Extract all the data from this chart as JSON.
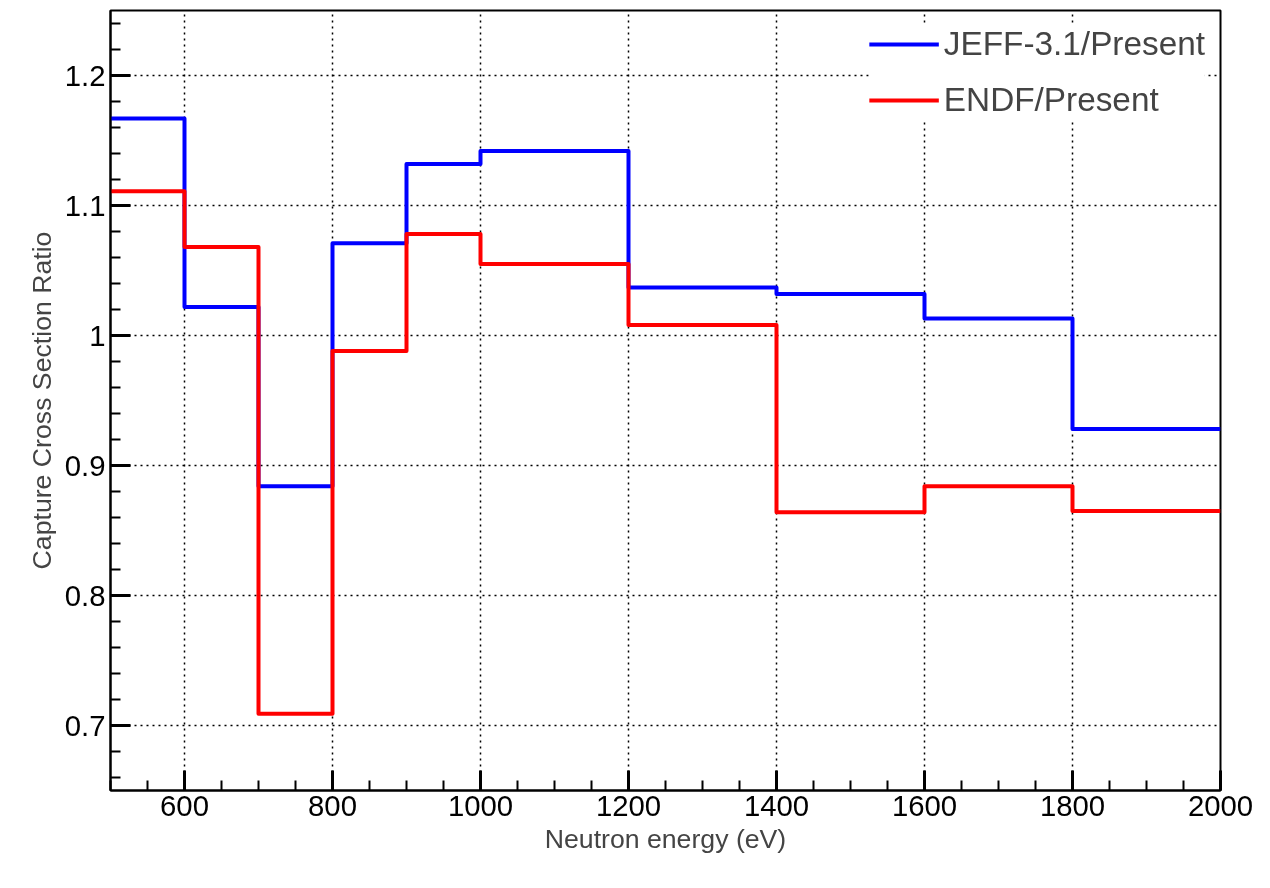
{
  "chart_data": {
    "type": "step",
    "xlabel": "Neutron energy (eV)",
    "ylabel": "Capture Cross Section Ratio",
    "x": [
      500,
      600,
      700,
      800,
      900,
      1000,
      1200,
      1400,
      1600,
      1800,
      2000
    ],
    "series": [
      {
        "name": "JEFF-3.1/Present",
        "color": "#0000ff",
        "values": [
          1.167,
          1.022,
          0.884,
          1.071,
          1.132,
          1.142,
          1.037,
          1.032,
          1.013,
          0.928,
          0.928
        ]
      },
      {
        "name": "ENDF/Present",
        "color": "#ff0000",
        "values": [
          1.111,
          1.068,
          0.709,
          0.988,
          1.078,
          1.055,
          1.008,
          0.864,
          0.884,
          0.865,
          0.865
        ]
      }
    ],
    "xlim": [
      500,
      2000
    ],
    "ylim": [
      0.65,
      1.25
    ],
    "xticks": [
      600,
      800,
      1000,
      1200,
      1400,
      1600,
      1800,
      2000
    ],
    "yticks": [
      0.7,
      0.8,
      0.9,
      1,
      1.1,
      1.2
    ],
    "grid": true,
    "legend": "top right",
    "line_style": "solid",
    "marker": "none"
  }
}
